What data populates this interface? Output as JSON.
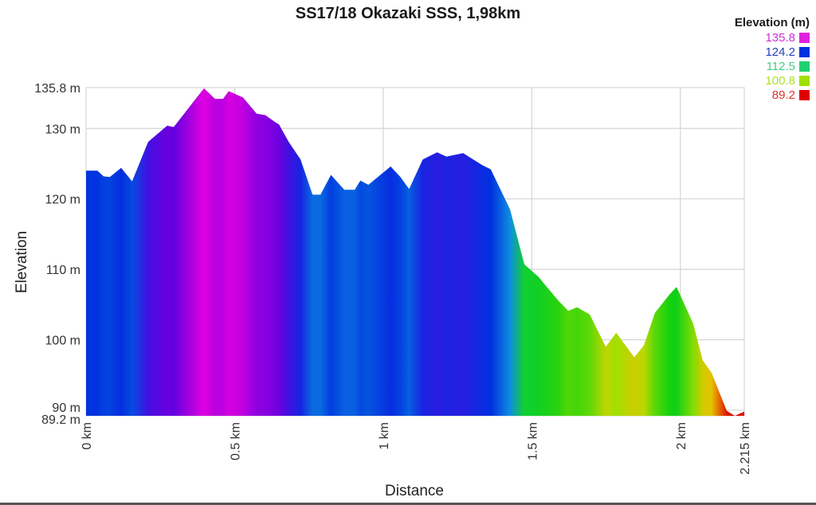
{
  "chart_data": {
    "type": "area",
    "title": "SS17/18 Okazaki SSS, 1,98km",
    "xlabel": "Distance",
    "ylabel": "Elevation",
    "xlim": [
      0,
      2.215
    ],
    "ylim": [
      89.2,
      135.8
    ],
    "x_ticks": [
      {
        "value": 0,
        "label": "0 km"
      },
      {
        "value": 0.5,
        "label": "0.5 km"
      },
      {
        "value": 1,
        "label": "1 km"
      },
      {
        "value": 1.5,
        "label": "1.5 km"
      },
      {
        "value": 2,
        "label": "2 km"
      },
      {
        "value": 2.215,
        "label": "2.215 km"
      }
    ],
    "y_ticks": [
      {
        "value": 135.8,
        "label": "135.8 m"
      },
      {
        "value": 130,
        "label": "130 m"
      },
      {
        "value": 120,
        "label": "120 m"
      },
      {
        "value": 110,
        "label": "110 m"
      },
      {
        "value": 100,
        "label": "100 m"
      },
      {
        "value": 90,
        "label": "90 m"
      },
      {
        "value": 89.2,
        "label": "89.2 m"
      }
    ],
    "grid": true,
    "legend": {
      "title": "Elevation (m)",
      "position": "top-right",
      "entries": [
        {
          "label": "135.8",
          "color": "#e020e0",
          "text_color": "#d030d8"
        },
        {
          "label": "124.2",
          "color": "#0030e0",
          "text_color": "#2040c0"
        },
        {
          "label": "112.5",
          "color": "#20d070",
          "text_color": "#40d080"
        },
        {
          "label": "100.8",
          "color": "#a0e000",
          "text_color": "#b0e020"
        },
        {
          "label": "89.2",
          "color": "#e00000",
          "text_color": "#e03030"
        }
      ]
    },
    "color_scale": [
      {
        "value": 89.2,
        "color": "#e00000"
      },
      {
        "value": 95.0,
        "color": "#e8c000"
      },
      {
        "value": 100.8,
        "color": "#a8e000"
      },
      {
        "value": 106.6,
        "color": "#10d010"
      },
      {
        "value": 112.5,
        "color": "#10d040"
      },
      {
        "value": 118.3,
        "color": "#1090e0"
      },
      {
        "value": 124.2,
        "color": "#0030e0"
      },
      {
        "value": 130.0,
        "color": "#6000e0"
      },
      {
        "value": 135.8,
        "color": "#e000e0"
      }
    ],
    "series": [
      {
        "name": "Elevation",
        "x": [
          0,
          0.038,
          0.059,
          0.08,
          0.118,
          0.155,
          0.209,
          0.273,
          0.295,
          0.367,
          0.397,
          0.434,
          0.461,
          0.48,
          0.528,
          0.574,
          0.603,
          0.636,
          0.649,
          0.682,
          0.722,
          0.762,
          0.789,
          0.824,
          0.869,
          0.904,
          0.923,
          0.95,
          1.025,
          1.058,
          1.087,
          1.133,
          1.181,
          1.213,
          1.269,
          1.333,
          1.362,
          1.427,
          1.475,
          1.523,
          1.588,
          1.623,
          1.652,
          1.695,
          1.749,
          1.784,
          1.845,
          1.877,
          1.914,
          1.963,
          1.987,
          2.043,
          2.075,
          2.105,
          2.156,
          2.183,
          2.215
        ],
        "values": [
          124.0,
          124.0,
          123.2,
          123.1,
          124.4,
          122.5,
          128.1,
          130.4,
          130.2,
          134.1,
          135.7,
          134.2,
          134.2,
          135.3,
          134.4,
          132.1,
          131.9,
          130.9,
          130.6,
          128.1,
          125.6,
          120.6,
          120.6,
          123.4,
          121.3,
          121.3,
          122.6,
          122.0,
          124.6,
          123.1,
          121.4,
          125.6,
          126.6,
          126.0,
          126.5,
          124.8,
          124.2,
          118.5,
          110.7,
          108.9,
          105.6,
          104.1,
          104.6,
          103.6,
          99.0,
          101.0,
          97.5,
          99.2,
          103.8,
          106.4,
          107.5,
          102.3,
          97.1,
          95.3,
          89.9,
          89.2,
          89.8
        ]
      }
    ]
  }
}
